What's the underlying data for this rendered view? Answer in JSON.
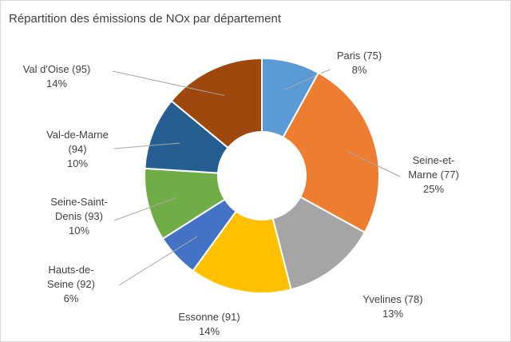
{
  "chart_data": {
    "type": "donut",
    "title": "Répartition des émissions de NOx par département",
    "categories": [
      "Paris (75)",
      "Seine-et-Marne (77)",
      "Yvelines (78)",
      "Essonne (91)",
      "Hauts-de-Seine (92)",
      "Seine-Saint-Denis (93)",
      "Val-de-Marne (94)",
      "Val d'Oise (95)"
    ],
    "values": [
      8,
      25,
      13,
      14,
      6,
      10,
      10,
      14
    ],
    "value_labels": [
      "8%",
      "25%",
      "13%",
      "14%",
      "6%",
      "10%",
      "10%",
      "14%"
    ],
    "colors": [
      "#5b9bd5",
      "#ed7d31",
      "#a5a5a5",
      "#ffc000",
      "#4472c4",
      "#70ad47",
      "#255e91",
      "#9e480e"
    ]
  }
}
